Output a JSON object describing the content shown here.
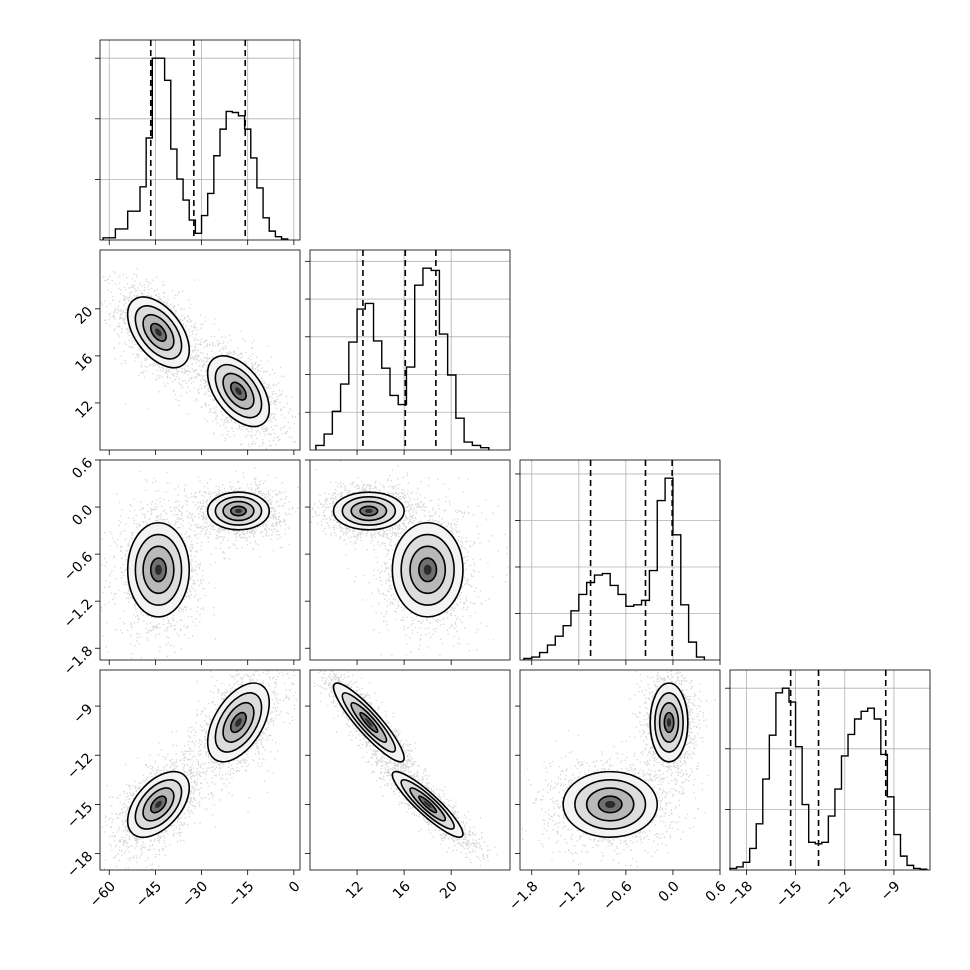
{
  "chart_data": {
    "type": "corner",
    "parameters": [
      {
        "index": 0,
        "range": [
          -63,
          2
        ],
        "ticks": [
          -60,
          -45,
          -30,
          -15,
          0
        ],
        "tick_labels": [
          "−60",
          "−45",
          "−30",
          "−15",
          "0"
        ],
        "quantiles": [
          -46.5,
          -32.5,
          -15.8
        ],
        "hist_bins": [
          -62,
          -58,
          -54,
          -50,
          -48,
          -46,
          -44,
          -42,
          -40,
          -38,
          -36,
          -34,
          -32,
          -30,
          -28,
          -26,
          -24,
          -22,
          -20,
          -18,
          -16,
          -14,
          -12,
          -10,
          -8,
          -6,
          -4,
          -2
        ],
        "hist_counts": [
          2,
          10,
          26,
          48,
          92,
          164,
          164,
          144,
          82,
          55,
          36,
          18,
          6,
          22,
          42,
          76,
          100,
          116,
          115,
          112,
          100,
          74,
          47,
          20,
          8,
          3,
          1
        ]
      },
      {
        "index": 1,
        "range": [
          8,
          25
        ],
        "ticks": [
          12,
          16,
          20
        ],
        "tick_labels": [
          "12",
          "16",
          "20"
        ],
        "quantiles": [
          12.5,
          16.1,
          18.7
        ],
        "hist_bins": [
          8.5,
          9.2,
          9.9,
          10.6,
          11.3,
          12.0,
          12.7,
          13.4,
          14.1,
          14.8,
          15.5,
          16.2,
          16.9,
          17.6,
          18.3,
          19.0,
          19.7,
          20.4,
          21.1,
          21.8,
          22.5,
          23.2
        ],
        "hist_counts": [
          4,
          14,
          34,
          58,
          95,
          124,
          129,
          96,
          72,
          48,
          40,
          73,
          145,
          160,
          158,
          102,
          66,
          28,
          7,
          4,
          2
        ]
      },
      {
        "index": 2,
        "range": [
          -1.95,
          0.6
        ],
        "ticks": [
          -1.8,
          -1.2,
          -0.6,
          0.0,
          0.6
        ],
        "tick_labels": [
          "−1.8",
          "−1.2",
          "−0.6",
          "0.0",
          "0.6"
        ],
        "quantiles": [
          -1.05,
          -0.35,
          -0.01
        ],
        "hist_bins": [
          -1.9,
          -1.8,
          -1.7,
          -1.6,
          -1.5,
          -1.4,
          -1.3,
          -1.2,
          -1.1,
          -1.0,
          -0.9,
          -0.8,
          -0.7,
          -0.6,
          -0.5,
          -0.4,
          -0.3,
          -0.2,
          -0.1,
          0.0,
          0.1,
          0.2,
          0.3,
          0.4
        ],
        "hist_counts": [
          2,
          4,
          10,
          20,
          32,
          46,
          66,
          88,
          104,
          114,
          116,
          100,
          88,
          72,
          74,
          80,
          120,
          214,
          244,
          168,
          74,
          24,
          4
        ]
      },
      {
        "index": 3,
        "range": [
          -19,
          -6.8
        ],
        "ticks": [
          -18,
          -15,
          -12,
          -9
        ],
        "tick_labels": [
          "−18",
          "−15",
          "−12",
          "−9"
        ],
        "quantiles": [
          -15.3,
          -13.6,
          -9.5
        ],
        "hist_bins": [
          -19.0,
          -18.6,
          -18.2,
          -17.8,
          -17.4,
          -17.0,
          -16.6,
          -16.2,
          -15.8,
          -15.4,
          -15.0,
          -14.6,
          -14.2,
          -13.8,
          -13.4,
          -13.0,
          -12.6,
          -12.2,
          -11.8,
          -11.4,
          -11.0,
          -10.6,
          -10.2,
          -9.8,
          -9.4,
          -9.0,
          -8.6,
          -8.2,
          -7.8,
          -7.4,
          -7.0
        ],
        "hist_counts": [
          2,
          4,
          10,
          28,
          60,
          118,
          175,
          230,
          236,
          218,
          160,
          85,
          36,
          34,
          36,
          70,
          105,
          148,
          176,
          196,
          206,
          210,
          196,
          150,
          95,
          46,
          18,
          6,
          2,
          1
        ]
      }
    ],
    "modes": [
      {
        "means": [
          -44,
          18,
          -0.8,
          -15
        ],
        "stds": [
          5,
          1.5,
          0.3,
          1.0
        ]
      },
      {
        "means": [
          -18,
          13,
          -0.05,
          -10
        ],
        "stds": [
          5,
          1.5,
          0.12,
          1.2
        ]
      }
    ],
    "correlations": {
      "0-1": -0.5,
      "0-2": 0.0,
      "0-3": 0.5,
      "1-2": 0.0,
      "1-3": -0.9,
      "2-3": 0.0
    },
    "grid": true
  }
}
